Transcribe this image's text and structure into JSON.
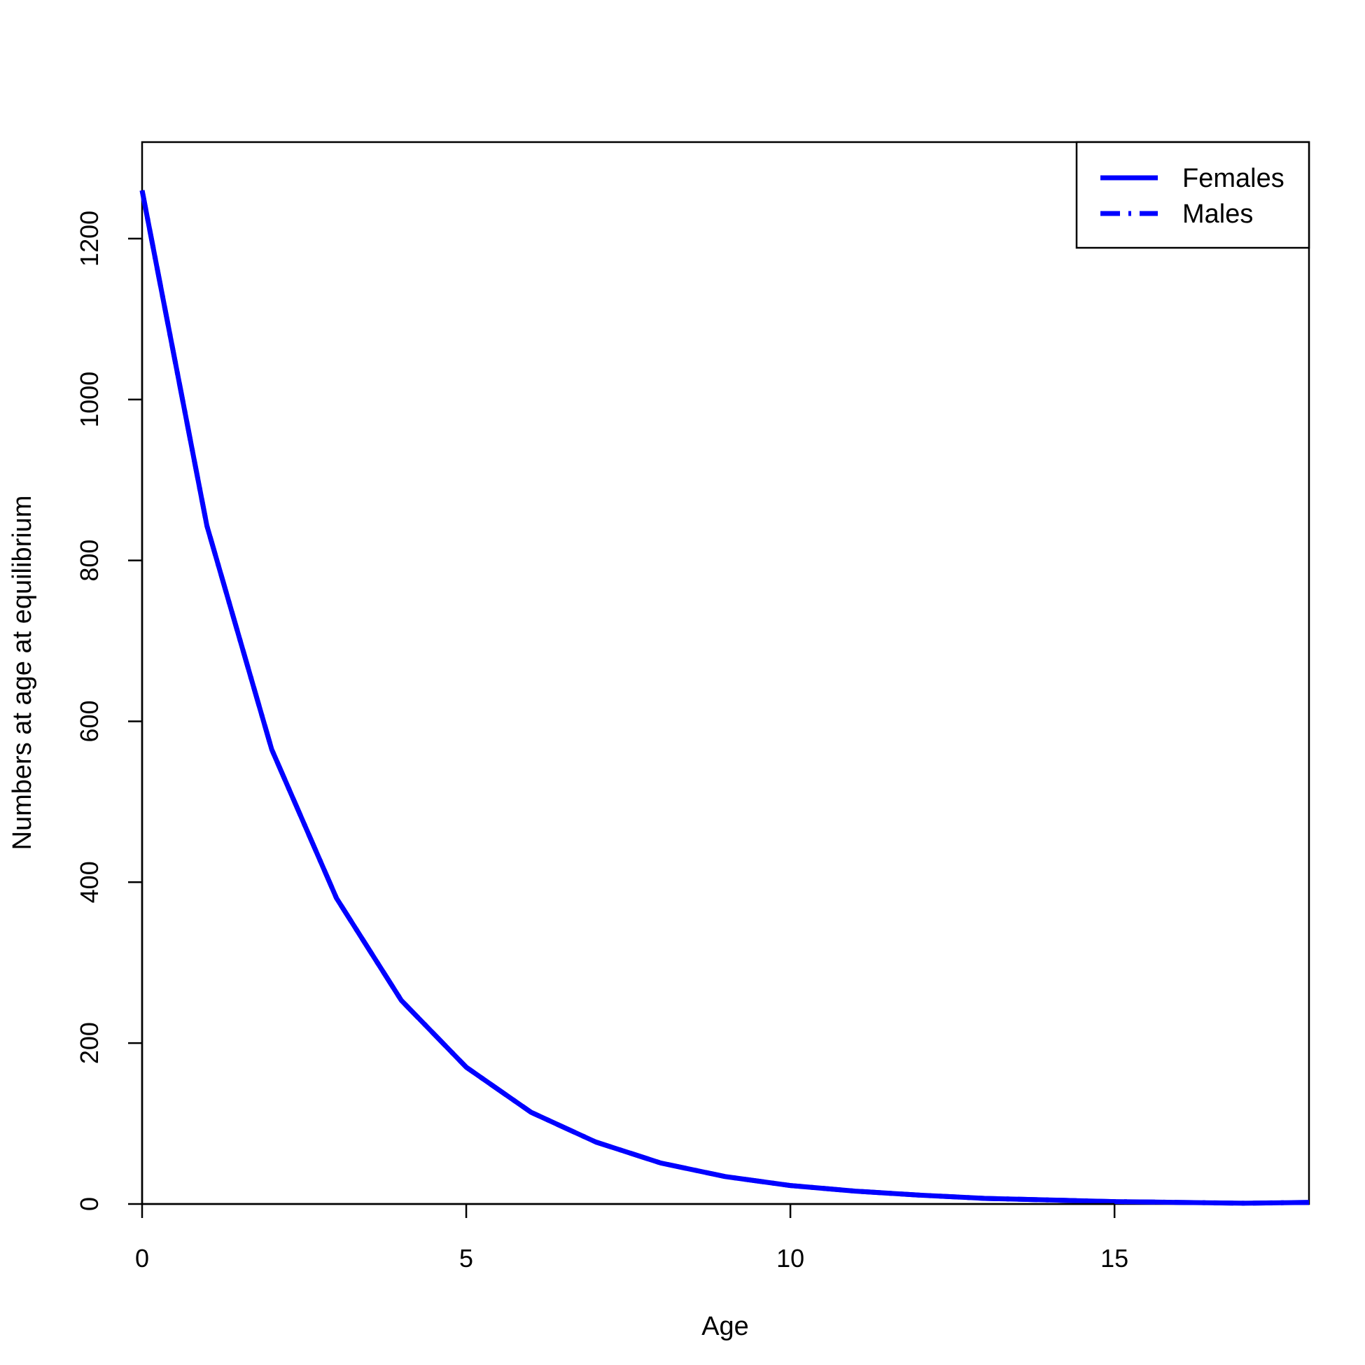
{
  "chart_data": {
    "type": "line",
    "xlabel": "Age",
    "ylabel": "Numbers at age at equilibrium",
    "xlim": [
      0,
      18
    ],
    "ylim": [
      0,
      1320
    ],
    "x_ticks": [
      "0",
      "5",
      "10",
      "15"
    ],
    "y_ticks": [
      "0",
      "200",
      "400",
      "600",
      "800",
      "1000",
      "1200"
    ],
    "grid": false,
    "legend_position": "top-right",
    "legend": [
      {
        "label": "Females",
        "color": "#0000ff",
        "linetype": "solid"
      },
      {
        "label": "Males",
        "color": "#0000ff",
        "linetype": "dashdot"
      }
    ],
    "series": [
      {
        "name": "Females",
        "color": "#0000ff",
        "linetype": "solid",
        "x": [
          0,
          1,
          2,
          3,
          4,
          5,
          6,
          7,
          8,
          9,
          10,
          11,
          12,
          13,
          14,
          15,
          16,
          17,
          18
        ],
        "y": [
          1260,
          843,
          565,
          380,
          253,
          170,
          114,
          77,
          51,
          34,
          23,
          16,
          11,
          7,
          5,
          3,
          2,
          1,
          2
        ]
      },
      {
        "name": "Males",
        "color": "#0000ff",
        "linetype": "dashdot",
        "x": [
          0,
          1,
          2,
          3,
          4,
          5,
          6,
          7,
          8,
          9,
          10,
          11,
          12,
          13,
          14,
          15,
          16,
          17,
          18
        ],
        "y": [
          1260,
          843,
          565,
          380,
          253,
          170,
          114,
          77,
          51,
          34,
          23,
          16,
          11,
          7,
          5,
          3,
          2,
          1,
          2
        ]
      }
    ]
  }
}
